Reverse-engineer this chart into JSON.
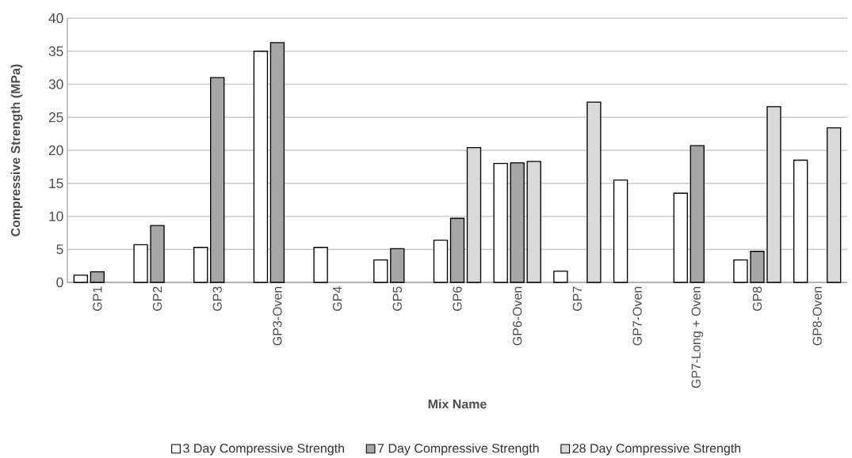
{
  "chart_data": {
    "type": "bar",
    "xlabel": "Mix Name",
    "ylabel": "Compressive Strength (MPa)",
    "categories": [
      "GP1",
      "GP2",
      "GP3",
      "GP3-Oven",
      "GP4",
      "GP5",
      "GP6",
      "GP6-Oven",
      "GP7",
      "GP7-Oven",
      "GP7-Long + Oven",
      "GP8",
      "GP8-Oven"
    ],
    "series": [
      {
        "name": "3 Day Compressive Strength",
        "color": "#ffffff",
        "values": [
          1.1,
          5.7,
          5.3,
          35.0,
          5.3,
          3.4,
          6.4,
          18.0,
          1.7,
          15.5,
          13.5,
          3.4,
          18.5
        ]
      },
      {
        "name": "7 Day Compressive Strength",
        "color": "#a6a6a6",
        "values": [
          1.6,
          8.6,
          31.0,
          36.3,
          null,
          5.1,
          9.7,
          18.1,
          null,
          null,
          20.7,
          4.7,
          null
        ]
      },
      {
        "name": "28 Day Compressive Strength",
        "color": "#d9d9d9",
        "values": [
          null,
          null,
          null,
          null,
          null,
          null,
          20.4,
          18.3,
          27.3,
          null,
          null,
          26.6,
          23.4
        ]
      }
    ],
    "ylim": [
      0,
      40
    ],
    "yticks": [
      0,
      5,
      10,
      15,
      20,
      25,
      30,
      35,
      40
    ],
    "grid": "y",
    "legend": "bottom"
  }
}
